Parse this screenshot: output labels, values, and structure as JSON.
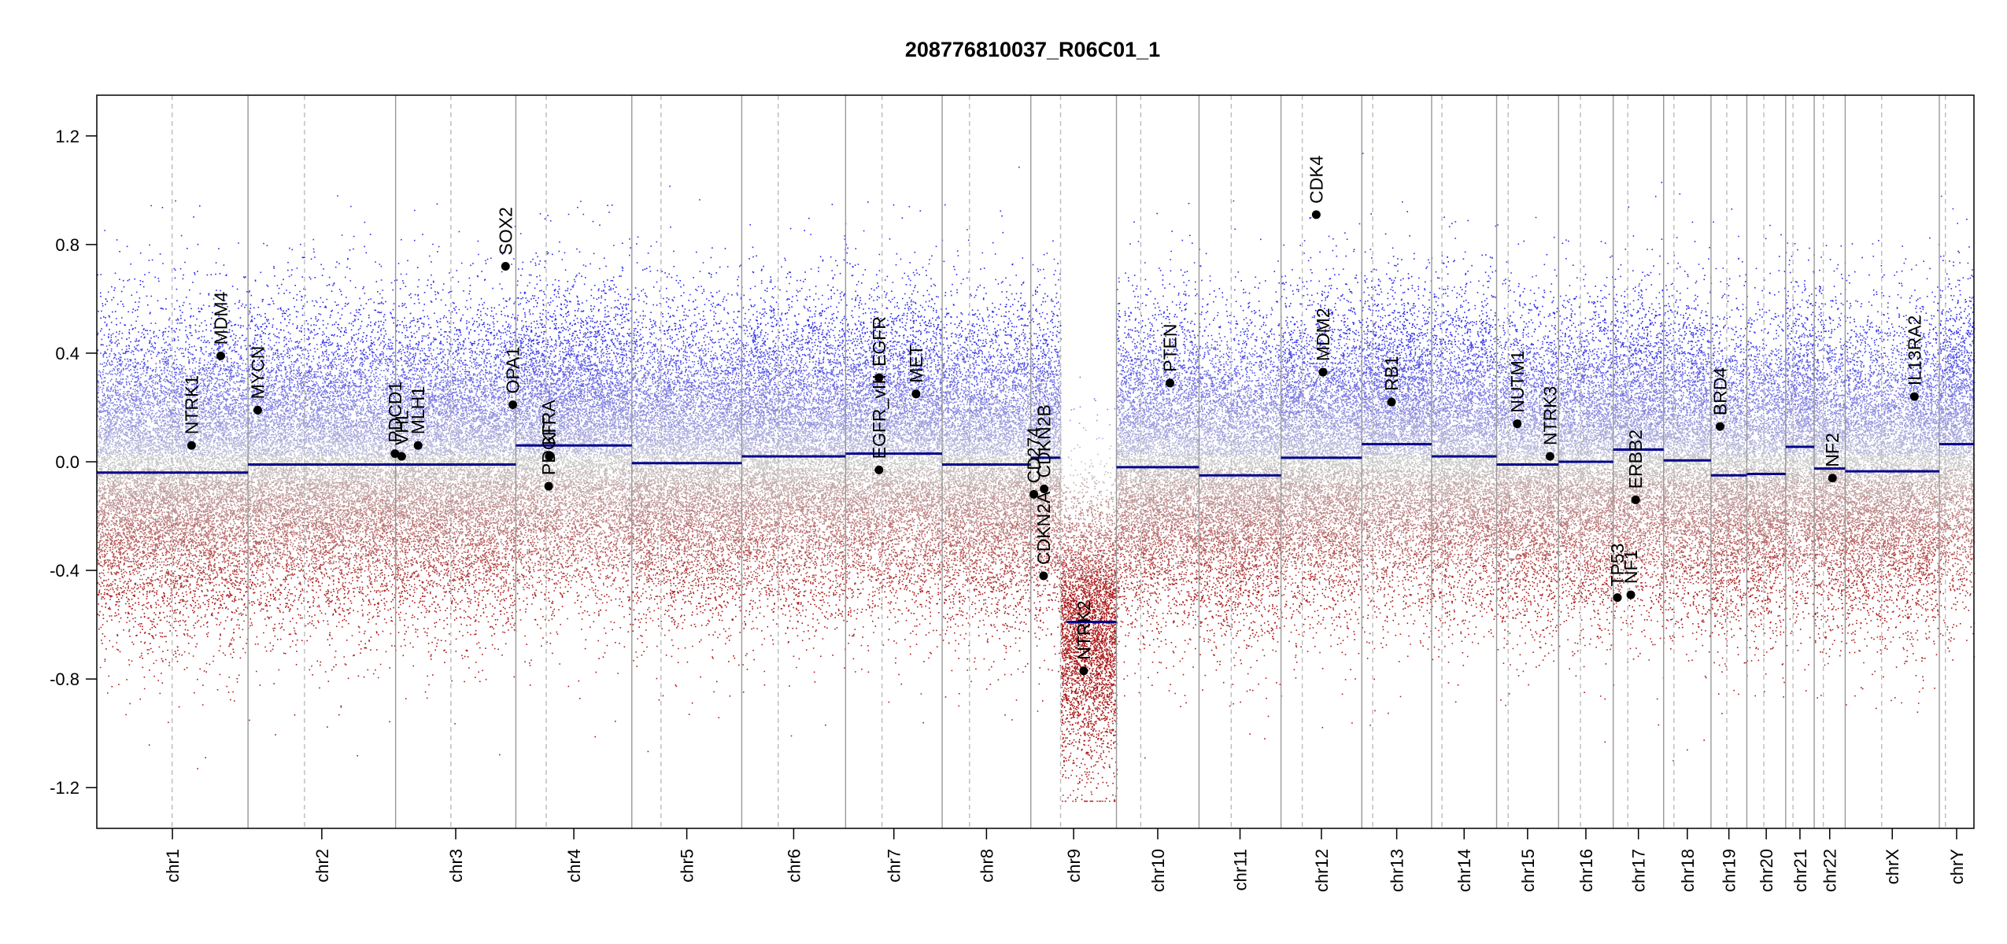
{
  "chart_data": {
    "type": "scatter",
    "title": "208776810037_R06C01_1",
    "xlabel": "",
    "ylabel": "",
    "ylim": [
      -1.35,
      1.35
    ],
    "yticks": [
      "-1.2",
      "-0.8",
      "-0.4",
      "0.0",
      "0.4",
      "0.8",
      "1.2"
    ],
    "grid": false,
    "colors": {
      "high": "#2b2bd0",
      "mid": "#c8c8c8",
      "low": "#b22222",
      "segment": "#00008b",
      "chromosome_boundary": "#999999",
      "centromere": "#bbbbbb",
      "gene_point": "#000000"
    },
    "chromosomes": [
      {
        "name": "chr1",
        "length": 249,
        "centromere": 124,
        "segment_mean": -0.04
      },
      {
        "name": "chr2",
        "length": 243,
        "centromere": 93,
        "segment_mean": -0.01
      },
      {
        "name": "chr3",
        "length": 198,
        "centromere": 91,
        "segment_mean": -0.01
      },
      {
        "name": "chr4",
        "length": 191,
        "centromere": 50,
        "segment_mean": 0.06
      },
      {
        "name": "chr5",
        "length": 181,
        "centromere": 48,
        "segment_mean": -0.005
      },
      {
        "name": "chr6",
        "length": 171,
        "centromere": 60,
        "segment_mean": 0.02
      },
      {
        "name": "chr7",
        "length": 159,
        "centromere": 60,
        "segment_mean": 0.03
      },
      {
        "name": "chr8",
        "length": 146,
        "centromere": 45,
        "segment_mean": -0.01
      },
      {
        "name": "chr9",
        "length": 141,
        "centromere": 49,
        "segment_mean": -0.59,
        "segment_short": {
          "end": 49,
          "mean": 0.015
        }
      },
      {
        "name": "chr10",
        "length": 136,
        "centromere": 40,
        "segment_mean": -0.02
      },
      {
        "name": "chr11",
        "length": 135,
        "centromere": 53,
        "segment_mean": -0.05
      },
      {
        "name": "chr12",
        "length": 133,
        "centromere": 35,
        "segment_mean": 0.015
      },
      {
        "name": "chr13",
        "length": 115,
        "centromere": 18,
        "segment_mean": 0.065
      },
      {
        "name": "chr14",
        "length": 107,
        "centromere": 17,
        "segment_mean": 0.02
      },
      {
        "name": "chr15",
        "length": 102,
        "centromere": 19,
        "segment_mean": -0.01
      },
      {
        "name": "chr16",
        "length": 90,
        "centromere": 36,
        "segment_mean": 0.0
      },
      {
        "name": "chr17",
        "length": 83,
        "centromere": 24,
        "segment_mean": 0.045
      },
      {
        "name": "chr18",
        "length": 78,
        "centromere": 17,
        "segment_mean": 0.005
      },
      {
        "name": "chr19",
        "length": 59,
        "centromere": 26,
        "segment_mean": -0.05
      },
      {
        "name": "chr20",
        "length": 64,
        "centromere": 28,
        "segment_mean": -0.045
      },
      {
        "name": "chr21",
        "length": 47,
        "centromere": 12,
        "segment_mean": 0.055
      },
      {
        "name": "chr22",
        "length": 51,
        "centromere": 15,
        "segment_mean": -0.025
      },
      {
        "name": "chrX",
        "length": 155,
        "centromere": 60,
        "segment_mean": -0.035
      },
      {
        "name": "chrY",
        "length": 57,
        "centromere": 10,
        "segment_mean": 0.065
      }
    ],
    "genes": [
      {
        "label": "NTRK1",
        "chr": "chr1",
        "pos": 156,
        "value": 0.06
      },
      {
        "label": "MDM4",
        "chr": "chr1",
        "pos": 204,
        "value": 0.39
      },
      {
        "label": "MYCN",
        "chr": "chr2",
        "pos": 16,
        "value": 0.19
      },
      {
        "label": "PDCD1",
        "chr": "chr2",
        "pos": 242,
        "value": 0.03
      },
      {
        "label": "VHL",
        "chr": "chr3",
        "pos": 10,
        "value": 0.02
      },
      {
        "label": "MLH1",
        "chr": "chr3",
        "pos": 37,
        "value": 0.06
      },
      {
        "label": "SOX2",
        "chr": "chr3",
        "pos": 181,
        "value": 0.72
      },
      {
        "label": "OPA1",
        "chr": "chr3",
        "pos": 193,
        "value": 0.21
      },
      {
        "label": "KIT",
        "chr": "chr4",
        "pos": 55,
        "value": 0.02
      },
      {
        "label": "PDGFRA",
        "chr": "chr4",
        "pos": 54,
        "value": -0.09
      },
      {
        "label": "EGFR",
        "chr": "chr7",
        "pos": 55,
        "value": 0.31
      },
      {
        "label": "EGFR_vIII",
        "chr": "chr7",
        "pos": 55,
        "value": -0.03
      },
      {
        "label": "MET",
        "chr": "chr7",
        "pos": 116,
        "value": 0.25
      },
      {
        "label": "CD274",
        "chr": "chr9",
        "pos": 5,
        "value": -0.12
      },
      {
        "label": "CDKN2B",
        "chr": "chr9",
        "pos": 22,
        "value": -0.1
      },
      {
        "label": "CDKN2A",
        "chr": "chr9",
        "pos": 21,
        "value": -0.42
      },
      {
        "label": "NTRK2",
        "chr": "chr9",
        "pos": 87,
        "value": -0.77
      },
      {
        "label": "PTEN",
        "chr": "chr10",
        "pos": 88,
        "value": 0.29
      },
      {
        "label": "CDK4",
        "chr": "chr12",
        "pos": 58,
        "value": 0.91
      },
      {
        "label": "MDM2",
        "chr": "chr12",
        "pos": 69,
        "value": 0.33
      },
      {
        "label": "RB1",
        "chr": "chr13",
        "pos": 49,
        "value": 0.22
      },
      {
        "label": "NUTM1",
        "chr": "chr15",
        "pos": 34,
        "value": 0.14
      },
      {
        "label": "NTRK3",
        "chr": "chr15",
        "pos": 88,
        "value": 0.02
      },
      {
        "label": "TP53",
        "chr": "chr17",
        "pos": 7,
        "value": -0.5
      },
      {
        "label": "NF1",
        "chr": "chr17",
        "pos": 29,
        "value": -0.49
      },
      {
        "label": "ERBB2",
        "chr": "chr17",
        "pos": 37,
        "value": -0.14
      },
      {
        "label": "BRD4",
        "chr": "chr19",
        "pos": 15,
        "value": 0.13
      },
      {
        "label": "NF2",
        "chr": "chr22",
        "pos": 30,
        "value": -0.06
      },
      {
        "label": "IL13RA2",
        "chr": "chrX",
        "pos": 114,
        "value": 0.24
      }
    ]
  }
}
